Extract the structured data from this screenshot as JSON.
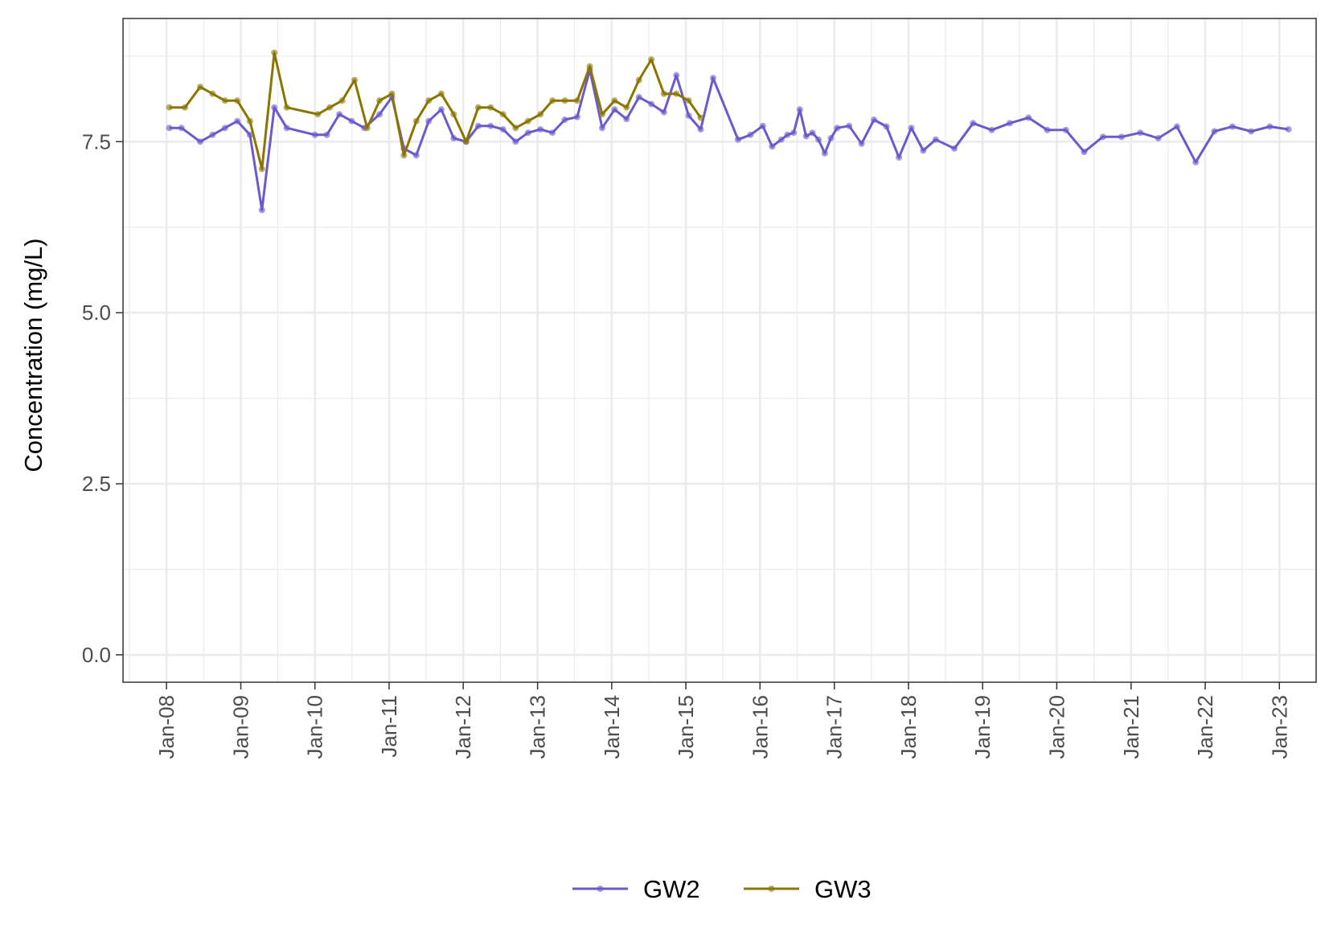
{
  "chart_data": {
    "type": "line",
    "title": "",
    "xlabel": "",
    "ylabel": "Concentration (mg/L)",
    "ylim": [
      -0.4,
      9.3
    ],
    "xlim": [
      "2007-06-01",
      "2023-07-01"
    ],
    "y_ticks": [
      "0.0",
      "2.5",
      "5.0",
      "7.5"
    ],
    "y_tick_values": [
      0,
      2.5,
      5,
      7.5
    ],
    "x_ticks": [
      "Jan-08",
      "Jan-09",
      "Jan-10",
      "Jan-11",
      "Jan-12",
      "Jan-13",
      "Jan-14",
      "Jan-15",
      "Jan-16",
      "Jan-17",
      "Jan-18",
      "Jan-19",
      "Jan-20",
      "Jan-21",
      "Jan-22",
      "Jan-23"
    ],
    "x_tick_values": [
      "2008-01-01",
      "2009-01-01",
      "2010-01-01",
      "2011-01-01",
      "2012-01-01",
      "2013-01-01",
      "2014-01-01",
      "2015-01-01",
      "2016-01-01",
      "2017-01-01",
      "2018-01-01",
      "2019-01-01",
      "2020-01-01",
      "2021-01-01",
      "2022-01-01",
      "2023-01-01"
    ],
    "grid": true,
    "legend_position": "bottom",
    "series": [
      {
        "name": "GW2",
        "color": "#6a5acd",
        "points": [
          {
            "x": "2008-01-15",
            "y": 7.7
          },
          {
            "x": "2008-03-15",
            "y": 7.7
          },
          {
            "x": "2008-06-15",
            "y": 7.5
          },
          {
            "x": "2008-08-15",
            "y": 7.6
          },
          {
            "x": "2008-10-15",
            "y": 7.7
          },
          {
            "x": "2008-12-15",
            "y": 7.8
          },
          {
            "x": "2009-02-15",
            "y": 7.6
          },
          {
            "x": "2009-04-15",
            "y": 6.5
          },
          {
            "x": "2009-06-15",
            "y": 8.0
          },
          {
            "x": "2009-08-15",
            "y": 7.7
          },
          {
            "x": "2010-01-01",
            "y": 7.6
          },
          {
            "x": "2010-03-01",
            "y": 7.6
          },
          {
            "x": "2010-05-01",
            "y": 7.9
          },
          {
            "x": "2010-07-01",
            "y": 7.8
          },
          {
            "x": "2010-09-01",
            "y": 7.7
          },
          {
            "x": "2010-11-15",
            "y": 7.9
          },
          {
            "x": "2011-01-15",
            "y": 8.15
          },
          {
            "x": "2011-03-15",
            "y": 7.4
          },
          {
            "x": "2011-05-15",
            "y": 7.3
          },
          {
            "x": "2011-07-15",
            "y": 7.8
          },
          {
            "x": "2011-09-15",
            "y": 7.97
          },
          {
            "x": "2011-11-15",
            "y": 7.55
          },
          {
            "x": "2012-01-15",
            "y": 7.5
          },
          {
            "x": "2012-03-15",
            "y": 7.73
          },
          {
            "x": "2012-05-15",
            "y": 7.73
          },
          {
            "x": "2012-07-15",
            "y": 7.68
          },
          {
            "x": "2012-09-15",
            "y": 7.5
          },
          {
            "x": "2012-11-15",
            "y": 7.63
          },
          {
            "x": "2013-01-15",
            "y": 7.68
          },
          {
            "x": "2013-03-15",
            "y": 7.63
          },
          {
            "x": "2013-05-15",
            "y": 7.82
          },
          {
            "x": "2013-07-15",
            "y": 7.86
          },
          {
            "x": "2013-09-15",
            "y": 8.55
          },
          {
            "x": "2013-11-15",
            "y": 7.7
          },
          {
            "x": "2014-01-15",
            "y": 7.97
          },
          {
            "x": "2014-03-15",
            "y": 7.83
          },
          {
            "x": "2014-05-15",
            "y": 8.15
          },
          {
            "x": "2014-07-15",
            "y": 8.05
          },
          {
            "x": "2014-09-15",
            "y": 7.93
          },
          {
            "x": "2014-11-15",
            "y": 8.47
          },
          {
            "x": "2015-01-15",
            "y": 7.88
          },
          {
            "x": "2015-03-15",
            "y": 7.68
          },
          {
            "x": "2015-05-15",
            "y": 8.43
          },
          {
            "x": "2015-09-15",
            "y": 7.53
          },
          {
            "x": "2015-11-15",
            "y": 7.6
          },
          {
            "x": "2016-01-15",
            "y": 7.73
          },
          {
            "x": "2016-03-01",
            "y": 7.43
          },
          {
            "x": "2016-04-15",
            "y": 7.53
          },
          {
            "x": "2016-05-15",
            "y": 7.6
          },
          {
            "x": "2016-06-15",
            "y": 7.63
          },
          {
            "x": "2016-07-15",
            "y": 7.97
          },
          {
            "x": "2016-08-15",
            "y": 7.58
          },
          {
            "x": "2016-09-15",
            "y": 7.63
          },
          {
            "x": "2016-10-15",
            "y": 7.53
          },
          {
            "x": "2016-11-15",
            "y": 7.33
          },
          {
            "x": "2016-12-15",
            "y": 7.55
          },
          {
            "x": "2017-01-15",
            "y": 7.7
          },
          {
            "x": "2017-03-15",
            "y": 7.73
          },
          {
            "x": "2017-05-15",
            "y": 7.47
          },
          {
            "x": "2017-07-15",
            "y": 7.82
          },
          {
            "x": "2017-09-15",
            "y": 7.72
          },
          {
            "x": "2017-11-15",
            "y": 7.27
          },
          {
            "x": "2018-01-15",
            "y": 7.7
          },
          {
            "x": "2018-03-15",
            "y": 7.37
          },
          {
            "x": "2018-05-15",
            "y": 7.53
          },
          {
            "x": "2018-08-15",
            "y": 7.4
          },
          {
            "x": "2018-11-15",
            "y": 7.77
          },
          {
            "x": "2019-02-15",
            "y": 7.67
          },
          {
            "x": "2019-05-15",
            "y": 7.77
          },
          {
            "x": "2019-08-15",
            "y": 7.85
          },
          {
            "x": "2019-11-15",
            "y": 7.67
          },
          {
            "x": "2020-02-15",
            "y": 7.67
          },
          {
            "x": "2020-05-15",
            "y": 7.35
          },
          {
            "x": "2020-08-15",
            "y": 7.57
          },
          {
            "x": "2020-11-15",
            "y": 7.57
          },
          {
            "x": "2021-02-15",
            "y": 7.63
          },
          {
            "x": "2021-05-15",
            "y": 7.55
          },
          {
            "x": "2021-08-15",
            "y": 7.72
          },
          {
            "x": "2021-11-15",
            "y": 7.2
          },
          {
            "x": "2022-02-15",
            "y": 7.65
          },
          {
            "x": "2022-05-15",
            "y": 7.72
          },
          {
            "x": "2022-08-15",
            "y": 7.65
          },
          {
            "x": "2022-11-15",
            "y": 7.72
          },
          {
            "x": "2023-02-15",
            "y": 7.68
          }
        ]
      },
      {
        "name": "GW3",
        "color": "#8b7500",
        "points": [
          {
            "x": "2008-01-15",
            "y": 8.0
          },
          {
            "x": "2008-04-01",
            "y": 8.0
          },
          {
            "x": "2008-06-15",
            "y": 8.3
          },
          {
            "x": "2008-08-15",
            "y": 8.2
          },
          {
            "x": "2008-10-15",
            "y": 8.1
          },
          {
            "x": "2008-12-15",
            "y": 8.1
          },
          {
            "x": "2009-02-15",
            "y": 7.8
          },
          {
            "x": "2009-04-15",
            "y": 7.1
          },
          {
            "x": "2009-06-15",
            "y": 8.8
          },
          {
            "x": "2009-08-15",
            "y": 8.0
          },
          {
            "x": "2010-01-15",
            "y": 7.9
          },
          {
            "x": "2010-03-15",
            "y": 8.0
          },
          {
            "x": "2010-05-15",
            "y": 8.1
          },
          {
            "x": "2010-07-15",
            "y": 8.4
          },
          {
            "x": "2010-09-15",
            "y": 7.7
          },
          {
            "x": "2010-11-15",
            "y": 8.1
          },
          {
            "x": "2011-01-15",
            "y": 8.2
          },
          {
            "x": "2011-03-15",
            "y": 7.3
          },
          {
            "x": "2011-05-15",
            "y": 7.8
          },
          {
            "x": "2011-07-15",
            "y": 8.1
          },
          {
            "x": "2011-09-15",
            "y": 8.2
          },
          {
            "x": "2011-11-15",
            "y": 7.9
          },
          {
            "x": "2012-01-15",
            "y": 7.5
          },
          {
            "x": "2012-03-15",
            "y": 8.0
          },
          {
            "x": "2012-05-15",
            "y": 8.0
          },
          {
            "x": "2012-07-15",
            "y": 7.9
          },
          {
            "x": "2012-09-15",
            "y": 7.7
          },
          {
            "x": "2012-11-15",
            "y": 7.8
          },
          {
            "x": "2013-01-15",
            "y": 7.9
          },
          {
            "x": "2013-03-15",
            "y": 8.1
          },
          {
            "x": "2013-05-15",
            "y": 8.1
          },
          {
            "x": "2013-07-15",
            "y": 8.1
          },
          {
            "x": "2013-09-15",
            "y": 8.6
          },
          {
            "x": "2013-11-15",
            "y": 7.9
          },
          {
            "x": "2014-01-15",
            "y": 8.1
          },
          {
            "x": "2014-03-15",
            "y": 8.0
          },
          {
            "x": "2014-05-15",
            "y": 8.4
          },
          {
            "x": "2014-07-15",
            "y": 8.7
          },
          {
            "x": "2014-09-15",
            "y": 8.2
          },
          {
            "x": "2014-11-15",
            "y": 8.2
          },
          {
            "x": "2015-01-15",
            "y": 8.1
          },
          {
            "x": "2015-03-15",
            "y": 7.85
          }
        ]
      }
    ]
  }
}
